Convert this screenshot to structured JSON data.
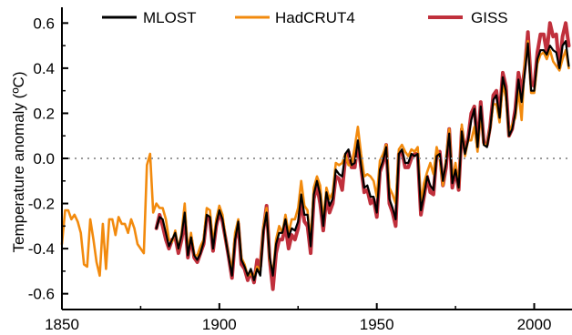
{
  "chart_data": {
    "type": "line",
    "title": "",
    "xlabel": "",
    "ylabel": "Temperature anomaly (ºC)",
    "xlim": [
      1850,
      2012
    ],
    "ylim": [
      -0.67,
      0.67
    ],
    "grid": false,
    "zero_line": {
      "style": "dotted",
      "color": "#999999"
    },
    "legend_placement": "top",
    "x_ticks": [
      1850,
      1900,
      1950,
      2000
    ],
    "x_tick_labels": [
      "1850",
      "1900",
      "1950",
      "2000"
    ],
    "y_ticks": [
      0.6,
      0.4,
      0.2,
      0.0,
      -0.2,
      -0.4,
      -0.6
    ],
    "y_tick_labels": [
      "0.6",
      "0.4",
      "0.2",
      "0.0",
      "-0.2",
      "-0.4",
      "-0.6"
    ],
    "series": [
      {
        "name": "GISS",
        "color": "#c0303c",
        "x": [
          1880,
          1881,
          1882,
          1883,
          1884,
          1885,
          1886,
          1887,
          1888,
          1889,
          1890,
          1891,
          1892,
          1893,
          1894,
          1895,
          1896,
          1897,
          1898,
          1899,
          1900,
          1901,
          1902,
          1903,
          1904,
          1905,
          1906,
          1907,
          1908,
          1909,
          1910,
          1911,
          1912,
          1913,
          1914,
          1915,
          1916,
          1917,
          1918,
          1919,
          1920,
          1921,
          1922,
          1923,
          1924,
          1925,
          1926,
          1927,
          1928,
          1929,
          1930,
          1931,
          1932,
          1933,
          1934,
          1935,
          1936,
          1937,
          1938,
          1939,
          1940,
          1941,
          1942,
          1943,
          1944,
          1945,
          1946,
          1947,
          1948,
          1949,
          1950,
          1951,
          1952,
          1953,
          1954,
          1955,
          1956,
          1957,
          1958,
          1959,
          1960,
          1961,
          1962,
          1963,
          1964,
          1965,
          1966,
          1967,
          1968,
          1969,
          1970,
          1971,
          1972,
          1973,
          1974,
          1975,
          1976,
          1977,
          1978,
          1979,
          1980,
          1981,
          1982,
          1983,
          1984,
          1985,
          1986,
          1987,
          1988,
          1989,
          1990,
          1991,
          1992,
          1993,
          1994,
          1995,
          1996,
          1997,
          1998,
          1999,
          2000,
          2001,
          2002,
          2003,
          2004,
          2005,
          2006,
          2007,
          2008,
          2009,
          2010,
          2011
        ],
        "values": [
          -0.31,
          -0.25,
          -0.3,
          -0.36,
          -0.4,
          -0.36,
          -0.35,
          -0.42,
          -0.36,
          -0.26,
          -0.44,
          -0.35,
          -0.44,
          -0.46,
          -0.42,
          -0.38,
          -0.26,
          -0.27,
          -0.41,
          -0.3,
          -0.24,
          -0.28,
          -0.36,
          -0.44,
          -0.53,
          -0.36,
          -0.29,
          -0.47,
          -0.49,
          -0.54,
          -0.5,
          -0.55,
          -0.45,
          -0.48,
          -0.32,
          -0.21,
          -0.45,
          -0.58,
          -0.42,
          -0.36,
          -0.36,
          -0.3,
          -0.4,
          -0.34,
          -0.36,
          -0.31,
          -0.19,
          -0.28,
          -0.3,
          -0.42,
          -0.18,
          -0.12,
          -0.2,
          -0.32,
          -0.17,
          -0.24,
          -0.2,
          -0.08,
          -0.09,
          -0.14,
          0.0,
          0.03,
          -0.04,
          -0.04,
          0.07,
          -0.04,
          -0.15,
          -0.14,
          -0.2,
          -0.18,
          -0.26,
          -0.06,
          -0.02,
          0.06,
          -0.2,
          -0.24,
          -0.3,
          0.02,
          0.03,
          -0.04,
          -0.04,
          0.0,
          0.02,
          0.02,
          -0.25,
          -0.17,
          -0.08,
          -0.15,
          -0.16,
          0.02,
          0.03,
          -0.12,
          -0.04,
          0.13,
          -0.13,
          -0.05,
          -0.14,
          0.13,
          0.03,
          0.09,
          0.2,
          0.23,
          0.05,
          0.25,
          0.07,
          0.06,
          0.14,
          0.28,
          0.3,
          0.19,
          0.38,
          0.32,
          0.1,
          0.13,
          0.22,
          0.38,
          0.29,
          0.4,
          0.56,
          0.33,
          0.32,
          0.47,
          0.55,
          0.55,
          0.47,
          0.6,
          0.54,
          0.55,
          0.4,
          0.54,
          0.6,
          0.5
        ]
      },
      {
        "name": "HadCRUT4",
        "color": "#f28a0d",
        "x": [
          1850,
          1851,
          1852,
          1853,
          1854,
          1855,
          1856,
          1857,
          1858,
          1859,
          1860,
          1861,
          1862,
          1863,
          1864,
          1865,
          1866,
          1867,
          1868,
          1869,
          1870,
          1871,
          1872,
          1873,
          1874,
          1875,
          1876,
          1877,
          1878,
          1879,
          1880,
          1881,
          1882,
          1883,
          1884,
          1885,
          1886,
          1887,
          1888,
          1889,
          1890,
          1891,
          1892,
          1893,
          1894,
          1895,
          1896,
          1897,
          1898,
          1899,
          1900,
          1901,
          1902,
          1903,
          1904,
          1905,
          1906,
          1907,
          1908,
          1909,
          1910,
          1911,
          1912,
          1913,
          1914,
          1915,
          1916,
          1917,
          1918,
          1919,
          1920,
          1921,
          1922,
          1923,
          1924,
          1925,
          1926,
          1927,
          1928,
          1929,
          1930,
          1931,
          1932,
          1933,
          1934,
          1935,
          1936,
          1937,
          1938,
          1939,
          1940,
          1941,
          1942,
          1943,
          1944,
          1945,
          1946,
          1947,
          1948,
          1949,
          1950,
          1951,
          1952,
          1953,
          1954,
          1955,
          1956,
          1957,
          1958,
          1959,
          1960,
          1961,
          1962,
          1963,
          1964,
          1965,
          1966,
          1967,
          1968,
          1969,
          1970,
          1971,
          1972,
          1973,
          1974,
          1975,
          1976,
          1977,
          1978,
          1979,
          1980,
          1981,
          1982,
          1983,
          1984,
          1985,
          1986,
          1987,
          1988,
          1989,
          1990,
          1991,
          1992,
          1993,
          1994,
          1995,
          1996,
          1997,
          1998,
          1999,
          2000,
          2001,
          2002,
          2003,
          2004,
          2005,
          2006,
          2007,
          2008,
          2009,
          2010,
          2011
        ],
        "values": [
          -0.38,
          -0.23,
          -0.23,
          -0.27,
          -0.25,
          -0.28,
          -0.33,
          -0.47,
          -0.48,
          -0.27,
          -0.36,
          -0.46,
          -0.52,
          -0.29,
          -0.49,
          -0.27,
          -0.27,
          -0.34,
          -0.26,
          -0.29,
          -0.29,
          -0.33,
          -0.27,
          -0.31,
          -0.38,
          -0.4,
          -0.42,
          -0.03,
          0.02,
          -0.24,
          -0.2,
          -0.22,
          -0.22,
          -0.27,
          -0.36,
          -0.37,
          -0.32,
          -0.4,
          -0.33,
          -0.2,
          -0.42,
          -0.33,
          -0.43,
          -0.43,
          -0.39,
          -0.36,
          -0.22,
          -0.23,
          -0.38,
          -0.27,
          -0.21,
          -0.25,
          -0.36,
          -0.43,
          -0.5,
          -0.33,
          -0.27,
          -0.44,
          -0.47,
          -0.52,
          -0.51,
          -0.53,
          -0.48,
          -0.5,
          -0.3,
          -0.22,
          -0.45,
          -0.51,
          -0.36,
          -0.3,
          -0.33,
          -0.25,
          -0.33,
          -0.27,
          -0.27,
          -0.22,
          -0.1,
          -0.21,
          -0.23,
          -0.37,
          -0.13,
          -0.08,
          -0.12,
          -0.28,
          -0.13,
          -0.18,
          -0.15,
          -0.02,
          -0.03,
          -0.02,
          0.02,
          -0.03,
          -0.03,
          0.05,
          0.14,
          0.02,
          -0.08,
          -0.07,
          -0.08,
          -0.1,
          -0.17,
          -0.01,
          0.02,
          0.06,
          -0.13,
          -0.16,
          -0.2,
          0.04,
          0.06,
          0.03,
          0.01,
          0.04,
          0.03,
          0.05,
          -0.2,
          -0.11,
          -0.06,
          -0.02,
          -0.07,
          0.05,
          0.0,
          -0.12,
          0.0,
          0.13,
          -0.1,
          -0.02,
          -0.13,
          0.15,
          0.01,
          0.08,
          0.08,
          0.14,
          0.03,
          0.21,
          0.06,
          0.06,
          0.13,
          0.24,
          0.24,
          0.16,
          0.33,
          0.27,
          0.1,
          0.15,
          0.18,
          0.3,
          0.17,
          0.42,
          0.52,
          0.29,
          0.29,
          0.42,
          0.46,
          0.47,
          0.44,
          0.48,
          0.43,
          0.41,
          0.39,
          0.44,
          0.48,
          0.4
        ]
      },
      {
        "name": "MLOST",
        "color": "#000000",
        "x": [
          1880,
          1881,
          1882,
          1883,
          1884,
          1885,
          1886,
          1887,
          1888,
          1889,
          1890,
          1891,
          1892,
          1893,
          1894,
          1895,
          1896,
          1897,
          1898,
          1899,
          1900,
          1901,
          1902,
          1903,
          1904,
          1905,
          1906,
          1907,
          1908,
          1909,
          1910,
          1911,
          1912,
          1913,
          1914,
          1915,
          1916,
          1917,
          1918,
          1919,
          1920,
          1921,
          1922,
          1923,
          1924,
          1925,
          1926,
          1927,
          1928,
          1929,
          1930,
          1931,
          1932,
          1933,
          1934,
          1935,
          1936,
          1937,
          1938,
          1939,
          1940,
          1941,
          1942,
          1943,
          1944,
          1945,
          1946,
          1947,
          1948,
          1949,
          1950,
          1951,
          1952,
          1953,
          1954,
          1955,
          1956,
          1957,
          1958,
          1959,
          1960,
          1961,
          1962,
          1963,
          1964,
          1965,
          1966,
          1967,
          1968,
          1969,
          1970,
          1971,
          1972,
          1973,
          1974,
          1975,
          1976,
          1977,
          1978,
          1979,
          1980,
          1981,
          1982,
          1983,
          1984,
          1985,
          1986,
          1987,
          1988,
          1989,
          1990,
          1991,
          1992,
          1993,
          1994,
          1995,
          1996,
          1997,
          1998,
          1999,
          2000,
          2001,
          2002,
          2003,
          2004,
          2005,
          2006,
          2007,
          2008,
          2009,
          2010,
          2011
        ],
        "values": [
          -0.31,
          -0.26,
          -0.27,
          -0.33,
          -0.39,
          -0.36,
          -0.33,
          -0.4,
          -0.34,
          -0.24,
          -0.43,
          -0.35,
          -0.43,
          -0.45,
          -0.42,
          -0.37,
          -0.25,
          -0.26,
          -0.4,
          -0.29,
          -0.23,
          -0.27,
          -0.36,
          -0.44,
          -0.52,
          -0.36,
          -0.28,
          -0.45,
          -0.48,
          -0.52,
          -0.49,
          -0.54,
          -0.49,
          -0.52,
          -0.32,
          -0.24,
          -0.44,
          -0.52,
          -0.38,
          -0.33,
          -0.33,
          -0.27,
          -0.35,
          -0.31,
          -0.32,
          -0.28,
          -0.16,
          -0.25,
          -0.25,
          -0.39,
          -0.16,
          -0.1,
          -0.16,
          -0.3,
          -0.15,
          -0.21,
          -0.18,
          -0.05,
          -0.07,
          -0.08,
          0.02,
          0.04,
          -0.03,
          -0.02,
          0.08,
          -0.03,
          -0.13,
          -0.12,
          -0.17,
          -0.17,
          -0.24,
          -0.05,
          -0.01,
          0.05,
          -0.18,
          -0.22,
          -0.27,
          0.02,
          0.04,
          -0.02,
          -0.02,
          0.02,
          0.01,
          0.02,
          -0.23,
          -0.16,
          -0.08,
          -0.12,
          -0.14,
          0.01,
          0.02,
          -0.1,
          -0.02,
          0.11,
          -0.11,
          -0.05,
          -0.13,
          0.12,
          0.02,
          0.08,
          0.17,
          0.22,
          0.05,
          0.23,
          0.06,
          0.05,
          0.13,
          0.26,
          0.28,
          0.18,
          0.36,
          0.3,
          0.1,
          0.13,
          0.2,
          0.35,
          0.25,
          0.38,
          0.51,
          0.3,
          0.3,
          0.44,
          0.48,
          0.48,
          0.46,
          0.5,
          0.48,
          0.47,
          0.4,
          0.5,
          0.52,
          0.41
        ]
      }
    ],
    "legend": [
      {
        "name": "MLOST",
        "color": "#000000"
      },
      {
        "name": "HadCRUT4",
        "color": "#f28a0d"
      },
      {
        "name": "GISS",
        "color": "#c0303c"
      }
    ]
  }
}
